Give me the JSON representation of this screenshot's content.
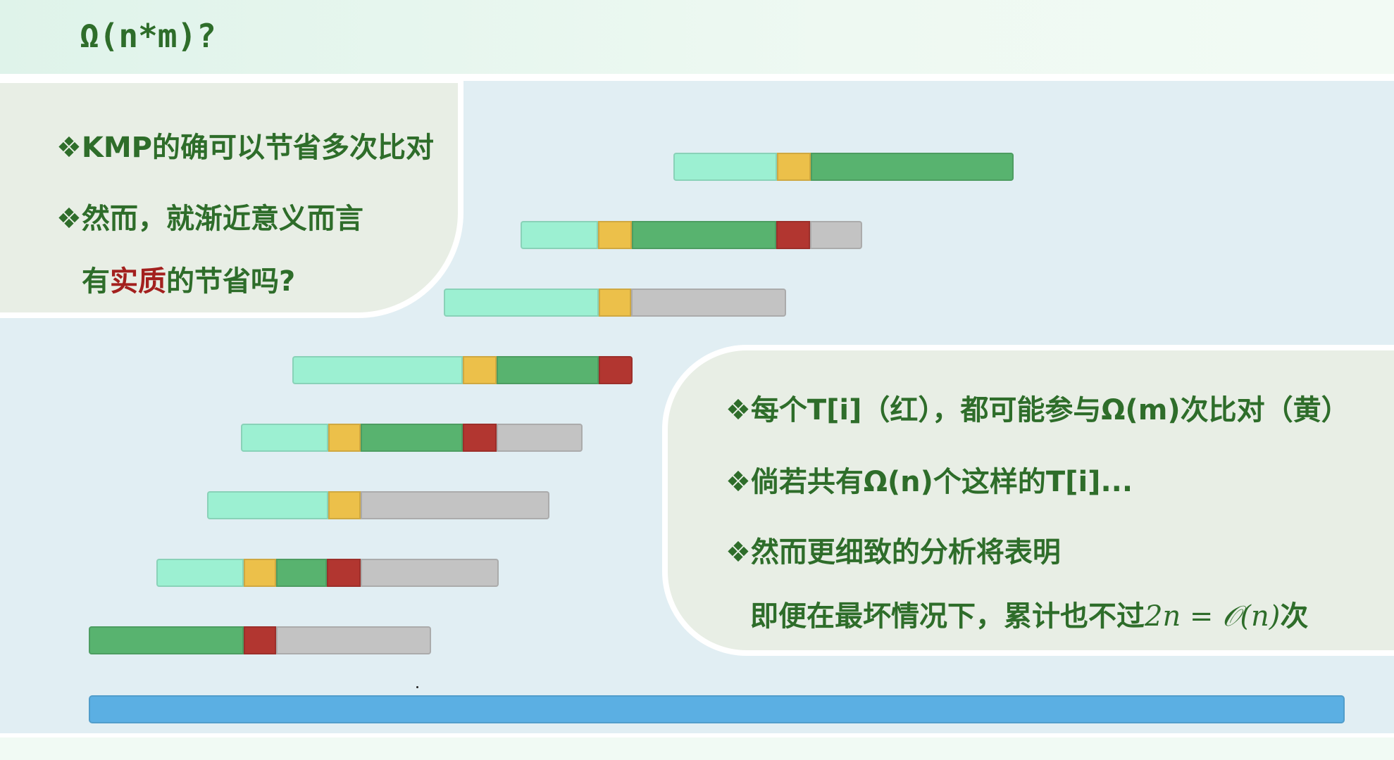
{
  "header": {
    "title": "Ω(n*m)?"
  },
  "left_panel": {
    "bullets": [
      {
        "symbol": "❖",
        "text": "KMP的确可以节省多次比对"
      },
      {
        "symbol": "❖",
        "text": "然而，就渐近意义而言"
      }
    ],
    "continuation": {
      "pre": "有",
      "highlight": "实质",
      "post": "的节省吗?"
    }
  },
  "right_panel": {
    "bullets": [
      {
        "symbol": "❖",
        "text": "每个T[i]（红），都可能参与Ω(m)次比对（黄）"
      },
      {
        "symbol": "❖",
        "text": "倘若共有Ω(n)个这样的T[i]..."
      },
      {
        "symbol": "❖",
        "text": "然而更细致的分析将表明"
      }
    ],
    "continuation": {
      "pre": "即便在最坏情况下，累计也不过",
      "math": "2n = 𝒪(n)",
      "post": "次"
    }
  },
  "colors": {
    "matched_prefix": "#9cf0d2",
    "compared": "#ecc04a",
    "pattern": "#58b36f",
    "mismatch": "#b23630",
    "unused": "#c3c3c3",
    "text": "#5bafe3",
    "heading": "#2e6d2a",
    "accent_red": "#a3201e"
  }
}
